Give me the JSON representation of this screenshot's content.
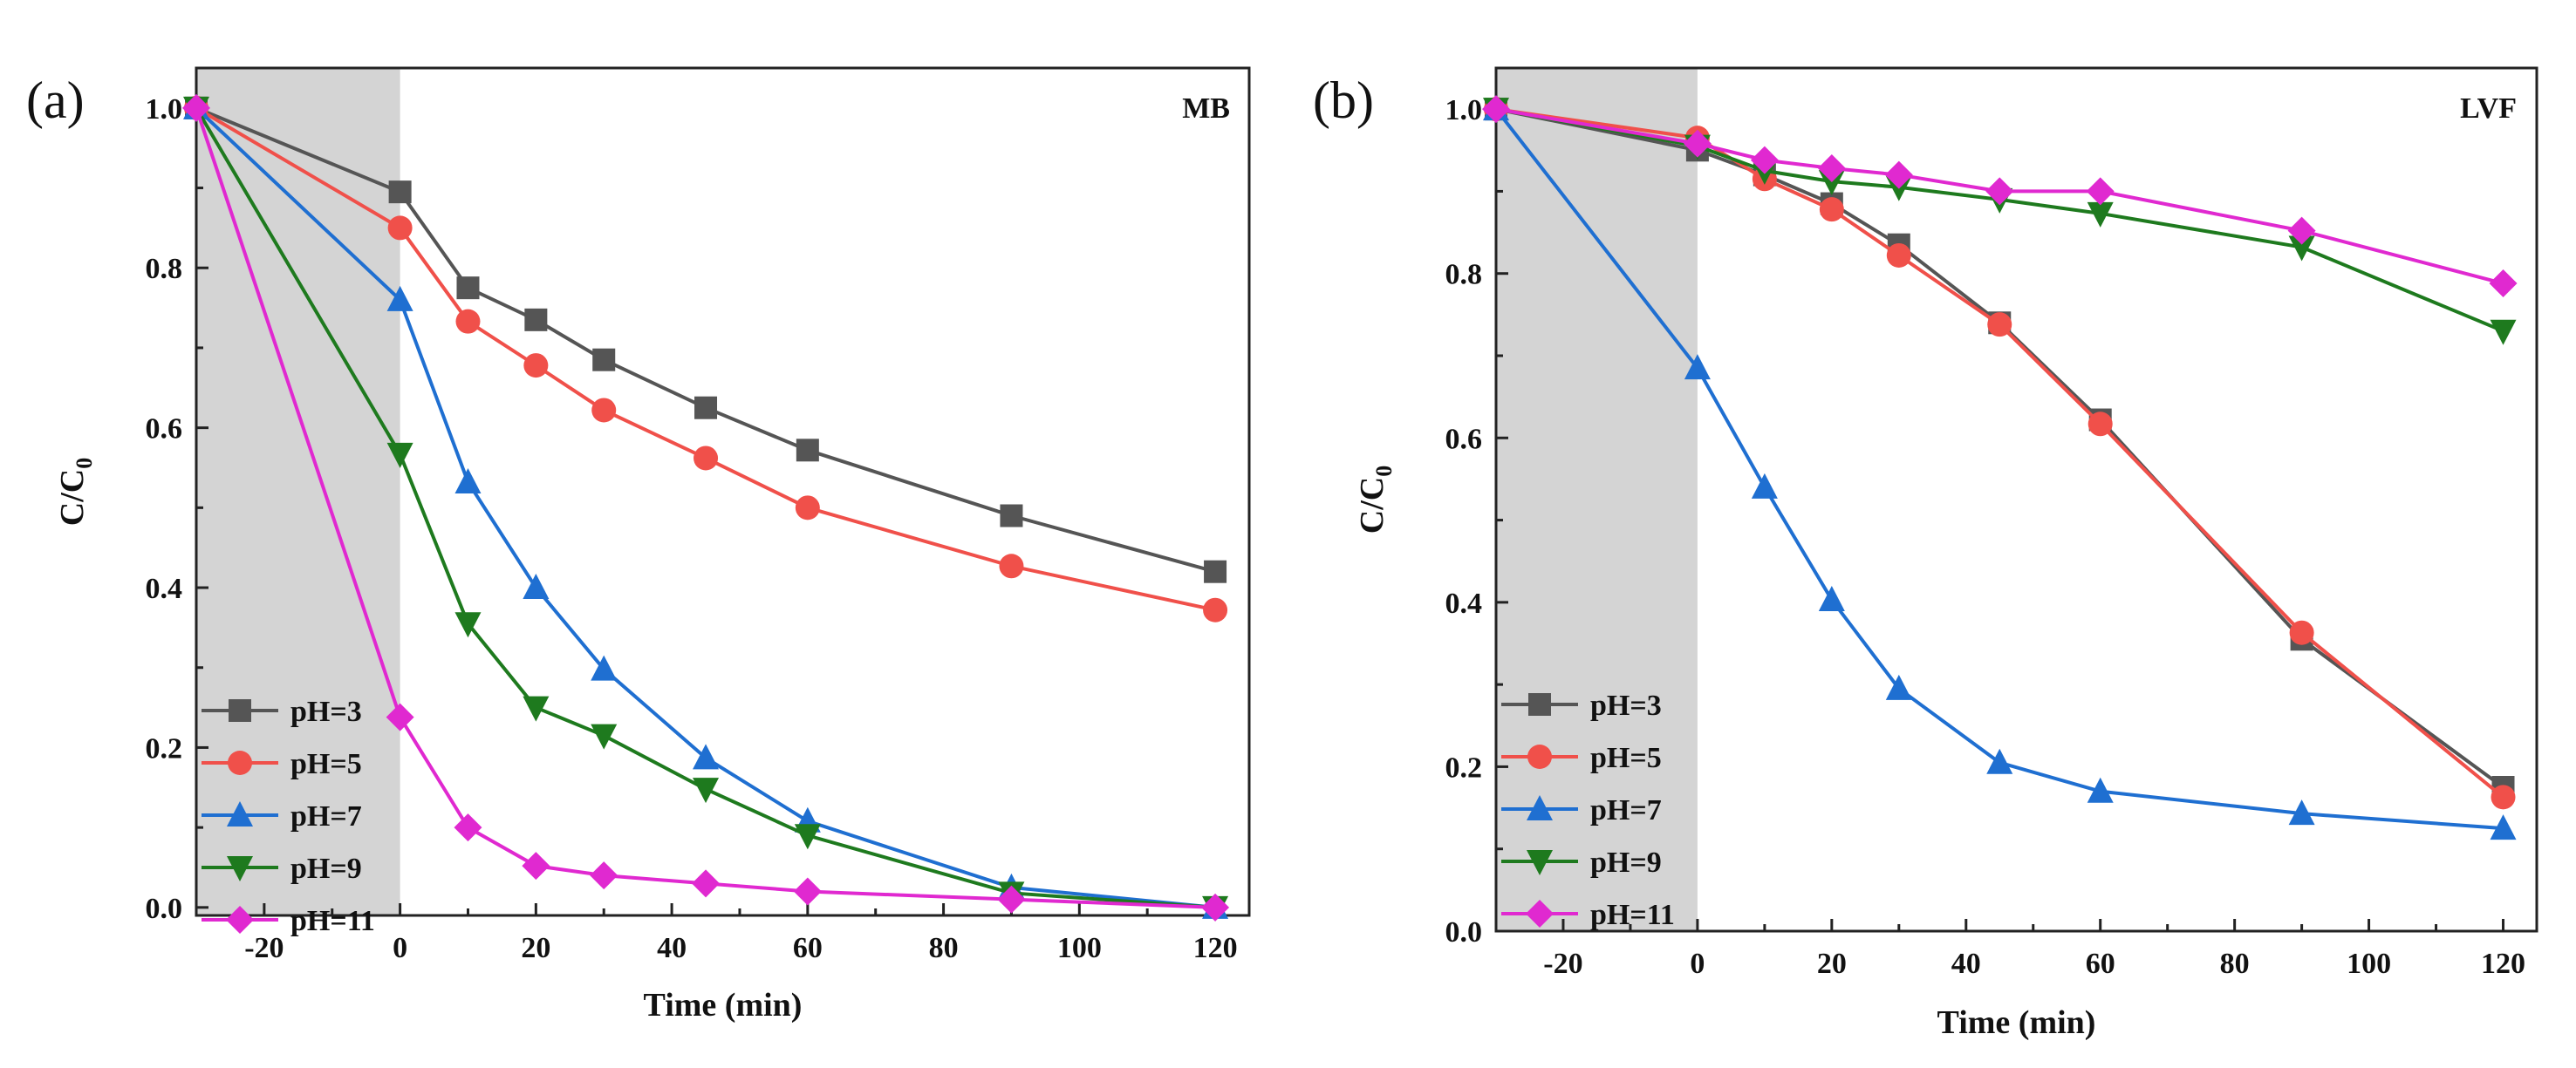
{
  "chart_data": [
    {
      "type": "line",
      "panel_label": "(a)",
      "dataset_label": "MB",
      "xlabel": "Time (min)",
      "ylabel": "C/C",
      "ylabel_sub": "0",
      "xlim": [
        -30,
        125
      ],
      "ylim": [
        -0.01,
        1.05
      ],
      "xticks": [
        -20,
        0,
        20,
        40,
        60,
        80,
        100,
        120
      ],
      "yticks": [
        0.0,
        0.2,
        0.4,
        0.6,
        0.8,
        1.0
      ],
      "xtick_labels": [
        "-20",
        "0",
        "20",
        "40",
        "60",
        "80",
        "100",
        "120"
      ],
      "ytick_labels": [
        "0.0",
        "0.2",
        "0.4",
        "0.6",
        "0.8",
        "1.0"
      ],
      "dark_region": [
        -30,
        0
      ],
      "legend_position": "bottom-left",
      "x": [
        -30,
        0,
        10,
        20,
        30,
        45,
        60,
        90,
        120
      ],
      "series": [
        {
          "name": "pH=3",
          "color": "#555555",
          "marker": "square",
          "values": [
            1.0,
            0.895,
            0.775,
            0.735,
            0.685,
            0.625,
            0.572,
            0.49,
            0.42
          ]
        },
        {
          "name": "pH=5",
          "color": "#f0504a",
          "marker": "circle",
          "values": [
            1.0,
            0.85,
            0.733,
            0.678,
            0.622,
            0.562,
            0.5,
            0.427,
            0.372
          ]
        },
        {
          "name": "pH=7",
          "color": "#1f6fd1",
          "marker": "triangle-up",
          "values": [
            1.0,
            0.76,
            0.532,
            0.4,
            0.298,
            0.187,
            0.108,
            0.025,
            0.0
          ]
        },
        {
          "name": "pH=9",
          "color": "#1e7a1e",
          "marker": "triangle-down",
          "values": [
            1.0,
            0.567,
            0.355,
            0.25,
            0.215,
            0.148,
            0.09,
            0.018,
            0.0
          ]
        },
        {
          "name": "pH=11",
          "color": "#e029d0",
          "marker": "diamond",
          "values": [
            1.0,
            0.238,
            0.1,
            0.052,
            0.04,
            0.03,
            0.02,
            0.01,
            0.0
          ]
        }
      ]
    },
    {
      "type": "line",
      "panel_label": "(b)",
      "dataset_label": "LVF",
      "xlabel": "Time (min)",
      "ylabel": "C/C",
      "ylabel_sub": "0",
      "xlim": [
        -30,
        125
      ],
      "ylim": [
        0.0,
        1.05
      ],
      "xticks": [
        -20,
        0,
        20,
        40,
        60,
        80,
        100,
        120
      ],
      "yticks": [
        0.0,
        0.2,
        0.4,
        0.6,
        0.8,
        1.0
      ],
      "xtick_labels": [
        "-20",
        "0",
        "20",
        "40",
        "60",
        "80",
        "100",
        "120"
      ],
      "ytick_labels": [
        "0.0",
        "0.2",
        "0.4",
        "0.6",
        "0.8",
        "1.0"
      ],
      "dark_region": [
        -30,
        0
      ],
      "legend_position": "bottom-left",
      "x": [
        -30,
        0,
        10,
        20,
        30,
        45,
        60,
        90,
        120
      ],
      "series": [
        {
          "name": "pH=3",
          "color": "#555555",
          "marker": "square",
          "values": [
            1.0,
            0.95,
            0.92,
            0.885,
            0.835,
            0.74,
            0.622,
            0.355,
            0.175
          ]
        },
        {
          "name": "pH=5",
          "color": "#f0504a",
          "marker": "circle",
          "values": [
            1.0,
            0.965,
            0.915,
            0.878,
            0.822,
            0.738,
            0.617,
            0.363,
            0.163
          ]
        },
        {
          "name": "pH=7",
          "color": "#1f6fd1",
          "marker": "triangle-up",
          "values": [
            1.0,
            0.685,
            0.54,
            0.403,
            0.295,
            0.205,
            0.17,
            0.143,
            0.125
          ]
        },
        {
          "name": "pH=9",
          "color": "#1e7a1e",
          "marker": "triangle-down",
          "values": [
            1.0,
            0.955,
            0.925,
            0.912,
            0.905,
            0.89,
            0.873,
            0.832,
            0.73
          ]
        },
        {
          "name": "pH=11",
          "color": "#e029d0",
          "marker": "diamond",
          "values": [
            1.0,
            0.958,
            0.938,
            0.928,
            0.92,
            0.9,
            0.9,
            0.852,
            0.788
          ]
        }
      ]
    }
  ]
}
